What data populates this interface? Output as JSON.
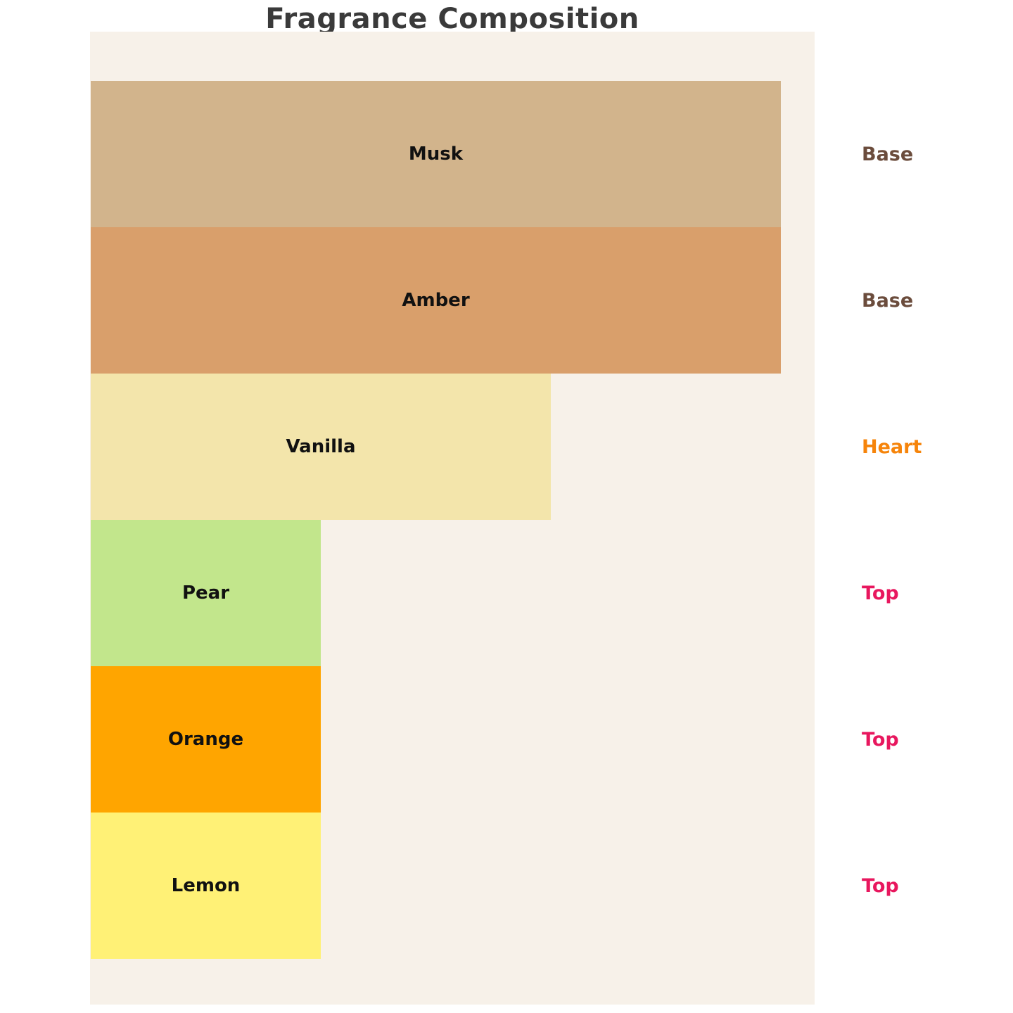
{
  "title": "Fragrance Composition",
  "colors": {
    "page_background": "#ffffff",
    "plot_background": "#f7f1e9",
    "title_text": "#3a3a3a",
    "bar_label_text": "#111111",
    "note_base": "#6b4c3c",
    "note_heart": "#f6840a",
    "note_top": "#e8175e"
  },
  "chart_data": {
    "type": "bar",
    "orientation": "horizontal",
    "title": "Fragrance Composition",
    "xlabel": "",
    "ylabel": "",
    "axes_visible": false,
    "grid": false,
    "legend": "none",
    "max_value": 30,
    "categories": [
      "Musk",
      "Amber",
      "Vanilla",
      "Pear",
      "Orange",
      "Lemon"
    ],
    "values": [
      30,
      30,
      20,
      10,
      10,
      10
    ],
    "value_note": "values estimated from relative bar widths (ratio 3:3:2:1:1:1)",
    "bars": [
      {
        "label": "Musk",
        "value": 30,
        "color": "#d2b48c",
        "note": "Base",
        "note_color": "#6b4c3c"
      },
      {
        "label": "Amber",
        "value": 30,
        "color": "#d99f6b",
        "note": "Base",
        "note_color": "#6b4c3c"
      },
      {
        "label": "Vanilla",
        "value": 20,
        "color": "#f3e5ab",
        "note": "Heart",
        "note_color": "#f6840a"
      },
      {
        "label": "Pear",
        "value": 10,
        "color": "#c2e68c",
        "note": "Top",
        "note_color": "#e8175e"
      },
      {
        "label": "Orange",
        "value": 10,
        "color": "#ffa500",
        "note": "Top",
        "note_color": "#e8175e"
      },
      {
        "label": "Lemon",
        "value": 10,
        "color": "#fff176",
        "note": "Top",
        "note_color": "#e8175e"
      }
    ]
  }
}
